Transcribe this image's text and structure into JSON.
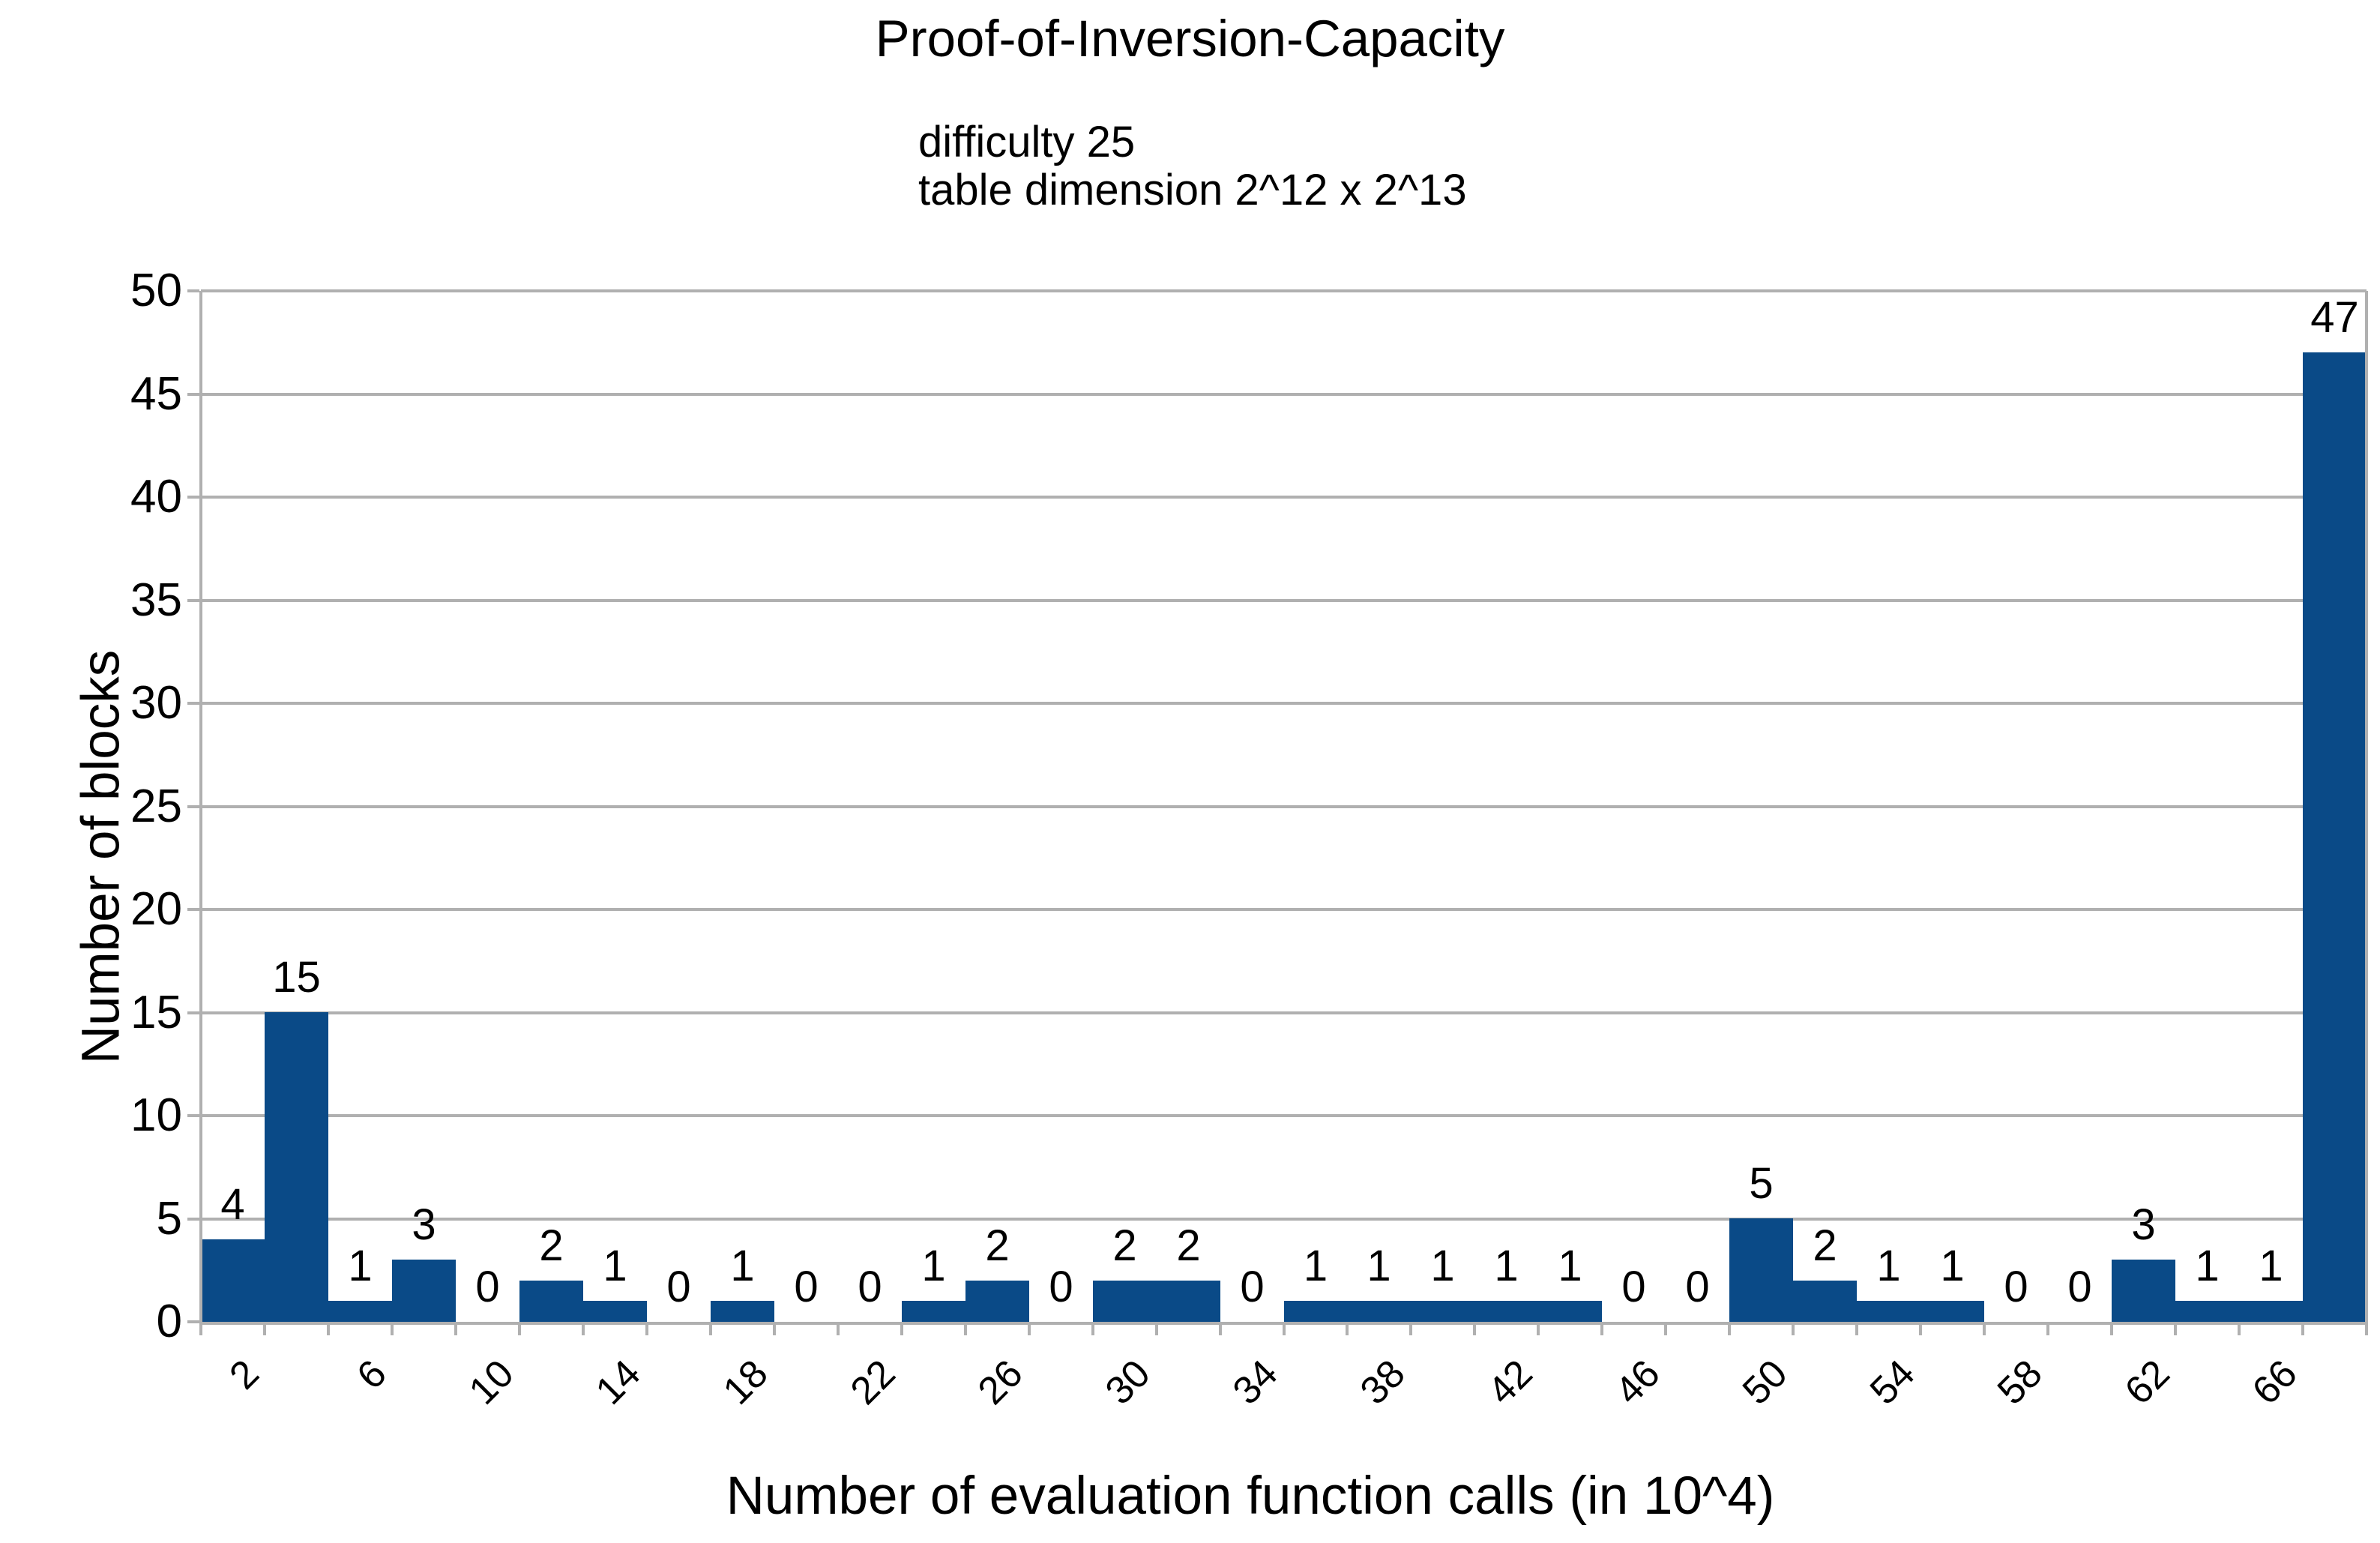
{
  "chart_data": {
    "type": "bar",
    "title": "Proof-of-Inversion-Capacity",
    "subtitle": [
      "difficulty 25",
      "table dimension 2^12 x 2^13"
    ],
    "xlabel": "Number of evaluation function calls (in 10^4)",
    "ylabel": "Number of blocks",
    "x": [
      2,
      4,
      6,
      8,
      10,
      12,
      14,
      16,
      18,
      20,
      22,
      24,
      26,
      28,
      30,
      32,
      34,
      36,
      38,
      40,
      42,
      44,
      46,
      48,
      50,
      52,
      54,
      56,
      58,
      60,
      62,
      64,
      66,
      68
    ],
    "values": [
      4,
      15,
      1,
      3,
      0,
      2,
      1,
      0,
      1,
      0,
      0,
      1,
      2,
      0,
      2,
      2,
      0,
      1,
      1,
      1,
      1,
      1,
      0,
      0,
      5,
      2,
      1,
      1,
      0,
      0,
      3,
      1,
      1,
      47
    ],
    "x_tick_labels": [
      "2",
      "6",
      "10",
      "14",
      "18",
      "22",
      "26",
      "30",
      "34",
      "38",
      "42",
      "46",
      "50",
      "54",
      "58",
      "62",
      "66"
    ],
    "y_ticks": [
      0,
      5,
      10,
      15,
      20,
      25,
      30,
      35,
      40,
      45,
      50
    ],
    "ylim": [
      0,
      50
    ],
    "grid": true,
    "legend_position": "none",
    "data_labels": true,
    "bar_color": "#0a4a87",
    "grid_color": "#b0b0b0",
    "text_color": "#000000"
  }
}
